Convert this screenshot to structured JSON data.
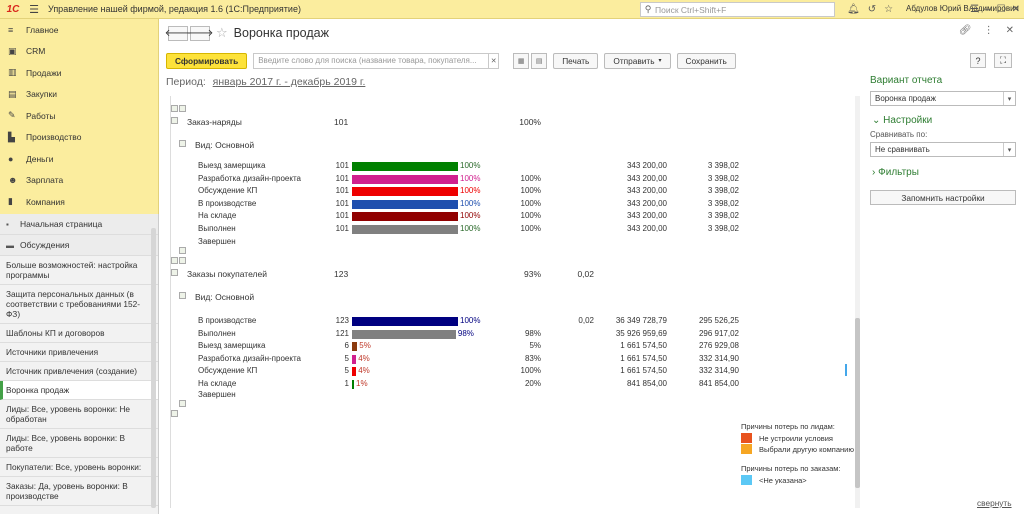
{
  "app": {
    "logo": "1С",
    "title": "Управление нашей фирмой, редакция 1.6   (1С:Предприятие)",
    "search_placeholder": "Поиск Ctrl+Shift+F",
    "user": "Абдулов Юрий Владимирович"
  },
  "nav": {
    "items": [
      {
        "label": "Главное",
        "icon": "menu-lines-icon"
      },
      {
        "label": "CRM",
        "icon": "crm-icon"
      },
      {
        "label": "Продажи",
        "icon": "cart-icon"
      },
      {
        "label": "Закупки",
        "icon": "truck-icon"
      },
      {
        "label": "Работы",
        "icon": "wrench-icon"
      },
      {
        "label": "Производство",
        "icon": "factory-icon"
      },
      {
        "label": "Деньги",
        "icon": "coin-icon"
      },
      {
        "label": "Зарплата",
        "icon": "people-icon"
      },
      {
        "label": "Компания",
        "icon": "company-icon"
      }
    ]
  },
  "open_pages": {
    "home": "Начальная страница",
    "discussions": "Обсуждения",
    "items": [
      "Больше возможностей: настройка программы",
      "Защита персональных данных (в соответствии с требованиями 152-ФЗ)",
      "Шаблоны КП и договоров",
      "Источники привлечения",
      "Источник привлечения (создание)",
      "Воронка продаж",
      "Лиды: Все, уровень воронки: Не обработан",
      "Лиды: Все, уровень воронки: В работе",
      "Покупатели: Все, уровень воронки:",
      "Заказы: Да, уровень воронки: В производстве"
    ],
    "active_index": 5
  },
  "page": {
    "title": "Воронка продаж",
    "generate_button": "Сформировать",
    "search_placeholder": "Введите слово для поиска (название товара, покупателя...",
    "print_button": "Печать",
    "send_button": "Отправить",
    "save_button": "Сохранить",
    "help": "?",
    "period_label": "Период:",
    "period_value": "январь 2017 г. - декабрь 2019 г."
  },
  "report": {
    "group1": {
      "title": "Заказ-наряды",
      "count": "101",
      "pct": "100%",
      "view": "Вид: Основной",
      "stages": [
        {
          "name": "Выезд замерщика",
          "count": "101",
          "bar_pct": 100,
          "pct_label": "100%",
          "conv": "",
          "sum": "343 200,00",
          "avg": "3 398,02",
          "color": "#008000"
        },
        {
          "name": "Разработка дизайн-проекта",
          "count": "101",
          "bar_pct": 100,
          "pct_label": "100%",
          "conv": "100%",
          "sum": "343 200,00",
          "avg": "3 398,02",
          "color": "#d0208e"
        },
        {
          "name": "Обсуждение КП",
          "count": "101",
          "bar_pct": 100,
          "pct_label": "100%",
          "conv": "100%",
          "sum": "343 200,00",
          "avg": "3 398,02",
          "color": "#ee0000"
        },
        {
          "name": "В производстве",
          "count": "101",
          "bar_pct": 100,
          "pct_label": "100%",
          "conv": "100%",
          "sum": "343 200,00",
          "avg": "3 398,02",
          "color": "#1f4fae"
        },
        {
          "name": "На складе",
          "count": "101",
          "bar_pct": 100,
          "pct_label": "100%",
          "conv": "100%",
          "sum": "343 200,00",
          "avg": "3 398,02",
          "color": "#900000"
        },
        {
          "name": "Выполнен",
          "count": "101",
          "bar_pct": 100,
          "pct_label": "100%",
          "conv": "100%",
          "sum": "343 200,00",
          "avg": "3 398,02",
          "color": "#808080"
        }
      ],
      "closed": "Завершен"
    },
    "group2": {
      "title": "Заказы покупателей",
      "count": "123",
      "pct": "93%",
      "extra": "0,02",
      "view": "Вид: Основной",
      "stages": [
        {
          "name": "В производстве",
          "count": "123",
          "bar_pct": 100,
          "pct_label": "100%",
          "conv": "",
          "extra": "0,02",
          "sum": "36 349 728,79",
          "avg": "295 526,25",
          "color": "#000080"
        },
        {
          "name": "Выполнен",
          "count": "121",
          "bar_pct": 98,
          "pct_label": "98%",
          "conv": "98%",
          "extra": "",
          "sum": "35 926 959,69",
          "avg": "296 917,02",
          "color": "#808080"
        },
        {
          "name": "Выезд замерщика",
          "count": "6",
          "bar_pct": 5,
          "pct_label": "5%",
          "conv": "5%",
          "extra": "",
          "sum": "1 661 574,50",
          "avg": "276 929,08",
          "color": "#8b3a0e"
        },
        {
          "name": "Разработка дизайн-проекта",
          "count": "5",
          "bar_pct": 4,
          "pct_label": "4%",
          "conv": "83%",
          "extra": "",
          "sum": "1 661 574,50",
          "avg": "332 314,90",
          "color": "#d0208e"
        },
        {
          "name": "Обсуждение КП",
          "count": "5",
          "bar_pct": 4,
          "pct_label": "4%",
          "conv": "100%",
          "extra": "",
          "sum": "1 661 574,50",
          "avg": "332 314,90",
          "color": "#ee0000"
        },
        {
          "name": "На складе",
          "count": "1",
          "bar_pct": 1,
          "pct_label": "1%",
          "conv": "20%",
          "extra": "",
          "sum": "841 854,00",
          "avg": "841 854,00",
          "color": "#008000"
        }
      ],
      "closed": "Завершен"
    },
    "legend_leads": {
      "title": "Причины потерь по лидам:",
      "items": [
        {
          "label": "Не устроили условия",
          "color": "#e8531e"
        },
        {
          "label": "Выбрали другую компанию",
          "color": "#f6a623"
        }
      ]
    },
    "legend_orders": {
      "title": "Причины потерь по заказам:",
      "items": [
        {
          "label": "<Не указана>",
          "color": "#5bc8f5"
        }
      ]
    }
  },
  "right_panel": {
    "variant_title": "Вариант отчета",
    "variant_value": "Воронка продаж",
    "settings_title": "Настройки",
    "compare_label": "Сравнивать по:",
    "compare_value": "Не сравнивать",
    "filters_title": "Фильтры",
    "remember_button": "Запомнить настройки",
    "collapse_link": "свернуть"
  }
}
